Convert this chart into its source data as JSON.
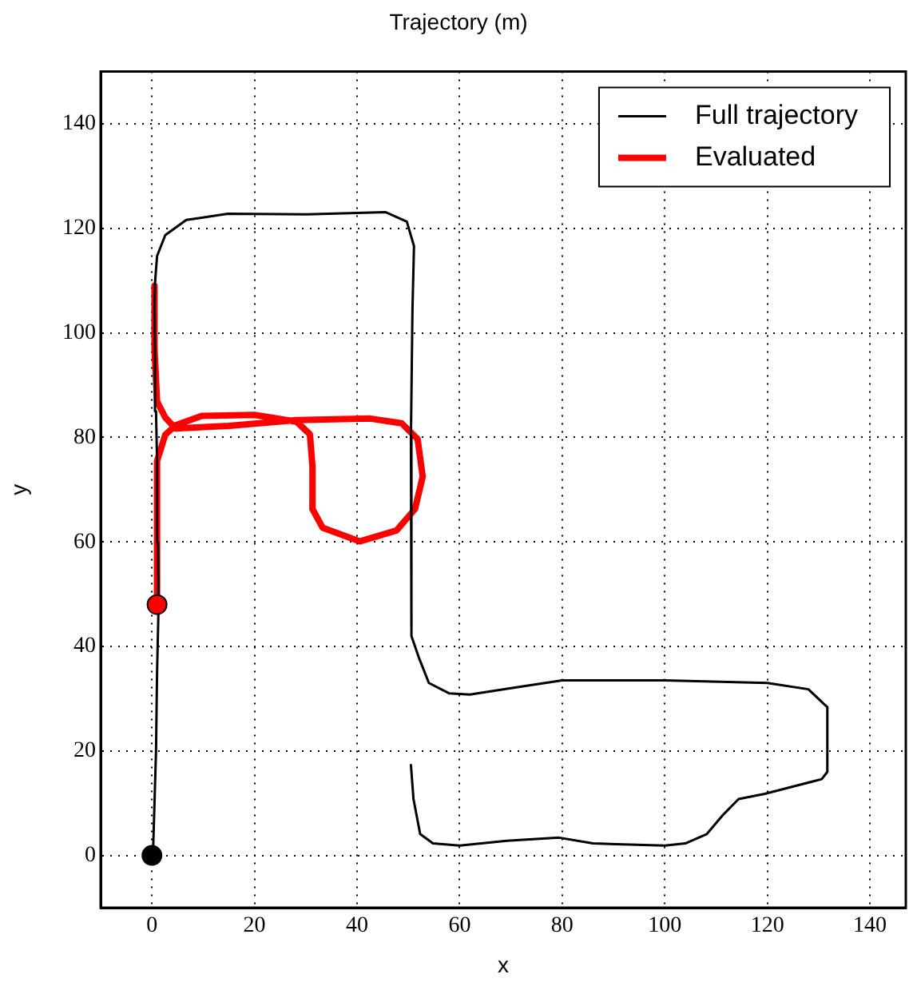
{
  "chart_data": {
    "type": "line",
    "title": "Trajectory (m)",
    "xlabel": "x",
    "ylabel": "y",
    "xlim": [
      -10,
      147
    ],
    "ylim": [
      -10,
      150
    ],
    "xticks": [
      0,
      20,
      40,
      60,
      80,
      100,
      120,
      140
    ],
    "yticks": [
      0,
      20,
      40,
      60,
      80,
      100,
      120,
      140
    ],
    "grid": true,
    "legend": "top right",
    "marker": "none",
    "line_style": "solid",
    "series": [
      {
        "name": "Full trajectory",
        "color": "#000000",
        "x": [
          0.2,
          0.5,
          0.8,
          1,
          1.3,
          1.2,
          1,
          0.8,
          0.6,
          0.5,
          0.6,
          1,
          2.6,
          6.7,
          14.8,
          30.2,
          45.6,
          49.7,
          51.1,
          50.8,
          50.5,
          50.6,
          52,
          54,
          58,
          62,
          70,
          80,
          100,
          120,
          128,
          131,
          131.7,
          131.7,
          130.6,
          119.5,
          114.4,
          111.3,
          108.2,
          104,
          100,
          86,
          79.4,
          69.2,
          60,
          54.8,
          52.3,
          51,
          50.5
        ],
        "values": [
          0,
          10,
          20,
          35,
          48,
          60,
          75,
          85,
          95,
          105,
          109.5,
          114.7,
          118.7,
          121.6,
          122.8,
          122.7,
          123.1,
          121.3,
          116.6,
          104.3,
          80,
          42,
          38,
          33,
          31,
          30.8,
          32,
          33.5,
          33.5,
          33,
          31.8,
          29,
          28.4,
          16,
          14.6,
          11.8,
          10.8,
          7.7,
          4.1,
          2.3,
          1.9,
          2.3,
          3.4,
          2.8,
          1.9,
          2.3,
          4.1,
          10.8,
          17.3
        ]
      },
      {
        "name": "Evaluated",
        "color": "#ff0000",
        "x": [
          1,
          1,
          2.6,
          4.6,
          9.7,
          20,
          28.2,
          30.8,
          31.3,
          31.3,
          33.3,
          40.5,
          47.7,
          51.3,
          52.8,
          51.8,
          48.7,
          42.6,
          28.2,
          15,
          4.6,
          2.6,
          1,
          0.5,
          0.5
        ],
        "values": [
          48,
          75.5,
          80.5,
          82.3,
          84.1,
          84.3,
          83,
          80.6,
          74.5,
          66.3,
          62.7,
          60.1,
          62.2,
          66.3,
          72.5,
          79.7,
          82.7,
          83.6,
          83.3,
          82.2,
          81.7,
          83.8,
          86.9,
          97,
          109
        ]
      },
      {
        "type": "scatter",
        "color": "#000000",
        "marker": "circle",
        "x": [
          0
        ],
        "values": [
          0
        ]
      },
      {
        "type": "scatter",
        "color": "#ff0000",
        "marker": "circle",
        "x": [
          1
        ],
        "values": [
          48
        ]
      }
    ]
  }
}
